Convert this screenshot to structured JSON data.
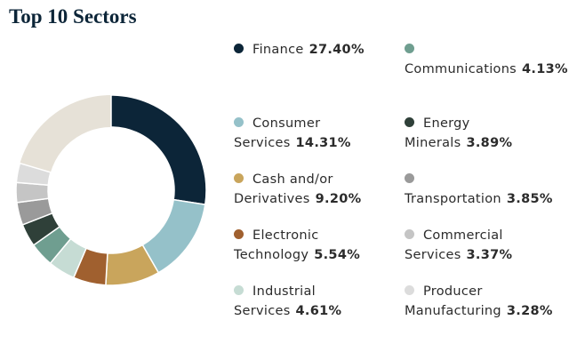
{
  "chart_data": {
    "type": "donut",
    "title": "Top 10 Sectors",
    "categories": [
      "Finance",
      "Consumer Services",
      "Cash and/or Derivatives",
      "Electronic Technology",
      "Industrial Services",
      "Communications",
      "Energy Minerals",
      "Transportation",
      "Commercial Services",
      "Producer Manufacturing"
    ],
    "values": [
      27.4,
      14.31,
      9.2,
      5.54,
      4.61,
      4.13,
      3.89,
      3.85,
      3.37,
      3.28
    ],
    "value_labels": [
      "27.40%",
      "14.31%",
      "9.20%",
      "5.54%",
      "4.61%",
      "4.13%",
      "3.89%",
      "3.85%",
      "3.37%",
      "3.28%"
    ],
    "colors": [
      "#0c2538",
      "#95c1c9",
      "#c9a55c",
      "#a0602f",
      "#c6dcd4",
      "#6f9e90",
      "#2f4039",
      "#9a9a9a",
      "#c5c5c5",
      "#dcdcdc"
    ]
  }
}
